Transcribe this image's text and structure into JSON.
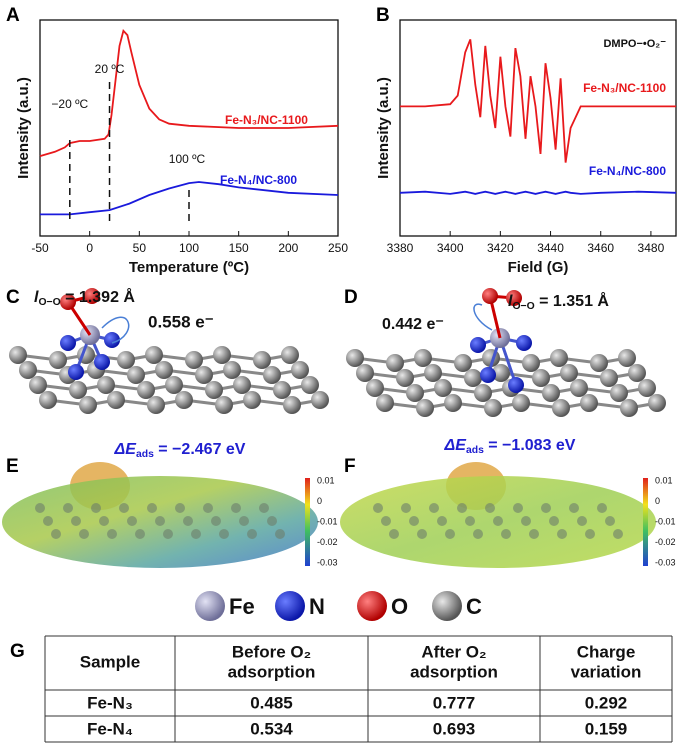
{
  "panel_labels": [
    "A",
    "B",
    "C",
    "D",
    "E",
    "F",
    "G"
  ],
  "chart_data": [
    {
      "type": "line",
      "xlabel": "Temperature (ºC)",
      "ylabel": "Intensity (a.u.)",
      "xlim": [
        -50,
        250
      ],
      "xticks": [
        -50,
        0,
        50,
        100,
        150,
        200,
        250
      ],
      "ylim": [
        0,
        1
      ],
      "series": [
        {
          "name": "Fe-N₃/NC-1100",
          "color": "#e8191c",
          "x": [
            -50,
            -35,
            -25,
            -20,
            -10,
            0,
            15,
            19,
            22,
            26,
            30,
            34,
            38,
            42,
            50,
            60,
            70,
            80,
            100,
            150,
            200,
            250
          ],
          "values": [
            0.37,
            0.39,
            0.41,
            0.43,
            0.44,
            0.44,
            0.45,
            0.47,
            0.56,
            0.72,
            0.88,
            0.95,
            0.93,
            0.85,
            0.7,
            0.59,
            0.54,
            0.52,
            0.51,
            0.5,
            0.5,
            0.51
          ]
        },
        {
          "name": "Fe-N₄/NC-800",
          "color": "#1a1adc",
          "x": [
            -50,
            -20,
            0,
            20,
            40,
            60,
            80,
            100,
            110,
            130,
            150,
            200,
            250
          ],
          "values": [
            0.1,
            0.1,
            0.11,
            0.12,
            0.15,
            0.19,
            0.22,
            0.245,
            0.25,
            0.24,
            0.225,
            0.2,
            0.19
          ]
        }
      ],
      "annotations": [
        {
          "text": "−20 ºC",
          "x": -20
        },
        {
          "text": "20 ºC",
          "x": 20
        },
        {
          "text": "100 ºC",
          "x": 100
        }
      ]
    },
    {
      "type": "line",
      "xlabel": "Field (G)",
      "ylabel": "Intensity (a.u.)",
      "xlim": [
        3380,
        3490
      ],
      "xticks": [
        3380,
        3400,
        3420,
        3440,
        3460,
        3480
      ],
      "ylim": [
        0,
        1
      ],
      "annotation": "DMPO−•O₂⁻",
      "x": [
        3380,
        3390,
        3400,
        3403,
        3406,
        3408,
        3410,
        3412,
        3414,
        3416,
        3418,
        3420,
        3422,
        3424,
        3426,
        3428,
        3430,
        3432,
        3434,
        3436,
        3438,
        3440,
        3442,
        3444,
        3446,
        3448,
        3452,
        3460,
        3475,
        3490
      ],
      "series": [
        {
          "name": "Fe-N₃/NC-1100",
          "color": "#e8191c",
          "values": [
            0.6,
            0.6,
            0.61,
            0.65,
            0.85,
            0.91,
            0.7,
            0.55,
            0.88,
            0.65,
            0.5,
            0.83,
            0.6,
            0.46,
            0.87,
            0.74,
            0.45,
            0.74,
            0.6,
            0.38,
            0.8,
            0.64,
            0.4,
            0.73,
            0.34,
            0.5,
            0.6,
            0.6,
            0.6,
            0.6
          ]
        },
        {
          "name": "Fe-N₄/NC-800",
          "color": "#1a1adc",
          "values": [
            0.2,
            0.205,
            0.195,
            0.2,
            0.205,
            0.2,
            0.195,
            0.2,
            0.205,
            0.2,
            0.195,
            0.2,
            0.205,
            0.2,
            0.195,
            0.2,
            0.205,
            0.2,
            0.195,
            0.2,
            0.205,
            0.2,
            0.195,
            0.2,
            0.205,
            0.2,
            0.195,
            0.2,
            0.205,
            0.2
          ]
        }
      ]
    }
  ],
  "structures": [
    {
      "bond": {
        "symbol": "l",
        "subscript": "O−O",
        "value": " = 1.392 Å"
      },
      "charge": "0.558 e⁻",
      "energy": {
        "symbol": "ΔE",
        "subscript": "ads",
        "value": " = −2.467 eV"
      }
    },
    {
      "bond": {
        "symbol": "l",
        "subscript": "O−O",
        "value": " = 1.351 Å"
      },
      "charge": "0.442 e⁻",
      "energy": {
        "symbol": "ΔE",
        "subscript": "ads",
        "value": " = −1.083 eV"
      }
    }
  ],
  "colorbar_ticks": [
    "0.01",
    "0",
    "-0.01",
    "-0.02",
    "-0.03"
  ],
  "legend": [
    "Fe",
    "N",
    "O",
    "C"
  ],
  "table": {
    "header": [
      [
        "Sample"
      ],
      [
        "Before O₂",
        "adsorption"
      ],
      [
        "After O₂",
        "adsorption"
      ],
      [
        "Charge",
        "variation"
      ]
    ],
    "rows": [
      [
        "Fe-N₃",
        "0.485",
        "0.777",
        "0.292"
      ],
      [
        "Fe-N₄",
        "0.534",
        "0.693",
        "0.159"
      ]
    ]
  }
}
